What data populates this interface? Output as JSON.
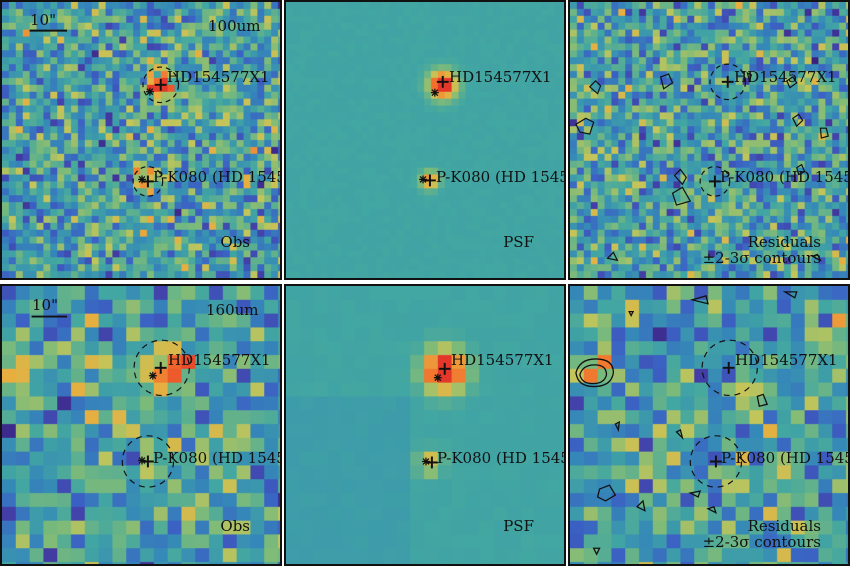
{
  "colors": {
    "background": "#ffffff",
    "frame": "#111111",
    "marker": "#111111"
  },
  "colormap": [
    "#3a1d7a",
    "#433fa8",
    "#3b62c4",
    "#3588b8",
    "#42a6a2",
    "#7cba7a",
    "#c2c55a",
    "#e9ad3f",
    "#f26d2c",
    "#e3372a"
  ],
  "rows": [
    {
      "band": "100um",
      "scale_bar": "10\"",
      "obs_label": "Obs",
      "psf_label": "PSF",
      "residual_label": [
        "Residuals",
        "±2-3σ contours"
      ],
      "sources": [
        "HD154577X1",
        "P-K080 (HD 1545"
      ]
    },
    {
      "band": "160um",
      "scale_bar": "10\"",
      "obs_label": "Obs",
      "psf_label": "PSF",
      "residual_label": [
        "Residuals",
        "±2-3σ contours"
      ],
      "sources": [
        "HD154577X1",
        "P-K080 (HD 1545"
      ]
    }
  ]
}
